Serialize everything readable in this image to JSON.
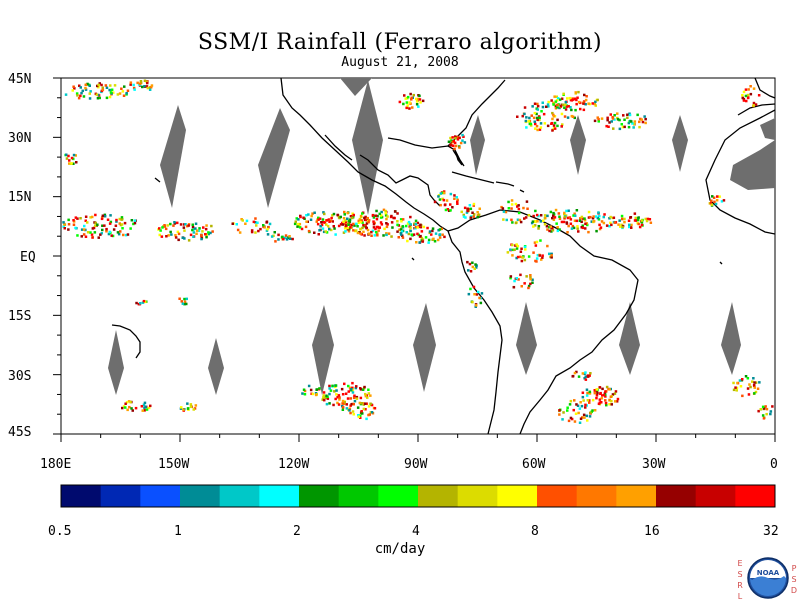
{
  "title": "SSM/I Rainfall (Ferraro algorithm)",
  "subtitle": "August 21, 2008",
  "map": {
    "lat_labels": [
      "45N",
      "30N",
      "15N",
      "EQ",
      "15S",
      "30S",
      "45S"
    ],
    "lon_labels": [
      "180E",
      "150W",
      "120W",
      "90W",
      "60W",
      "30W",
      "0"
    ],
    "colors": {
      "land_outline": "#000000",
      "data_gap_gray": "#6e6e6e",
      "land_gray": "#6e6e6e"
    }
  },
  "colorbar": {
    "tick_labels": [
      "0.5",
      "1",
      "2",
      "4",
      "8",
      "16",
      "32"
    ],
    "units": "cm/day",
    "colors": [
      "#000a6e",
      "#0028b4",
      "#0a50ff",
      "#008c96",
      "#00c8c8",
      "#00ffff",
      "#009600",
      "#00c800",
      "#00ff00",
      "#b4b400",
      "#dcdc00",
      "#ffff00",
      "#ff5000",
      "#ff7800",
      "#ffa000",
      "#960000",
      "#c80000",
      "#ff0000"
    ]
  },
  "logo": {
    "left_letters": [
      "E",
      "S",
      "R",
      "L"
    ],
    "right_letters": [
      "P",
      "S",
      "D"
    ],
    "badge_text": "NOAA"
  }
}
